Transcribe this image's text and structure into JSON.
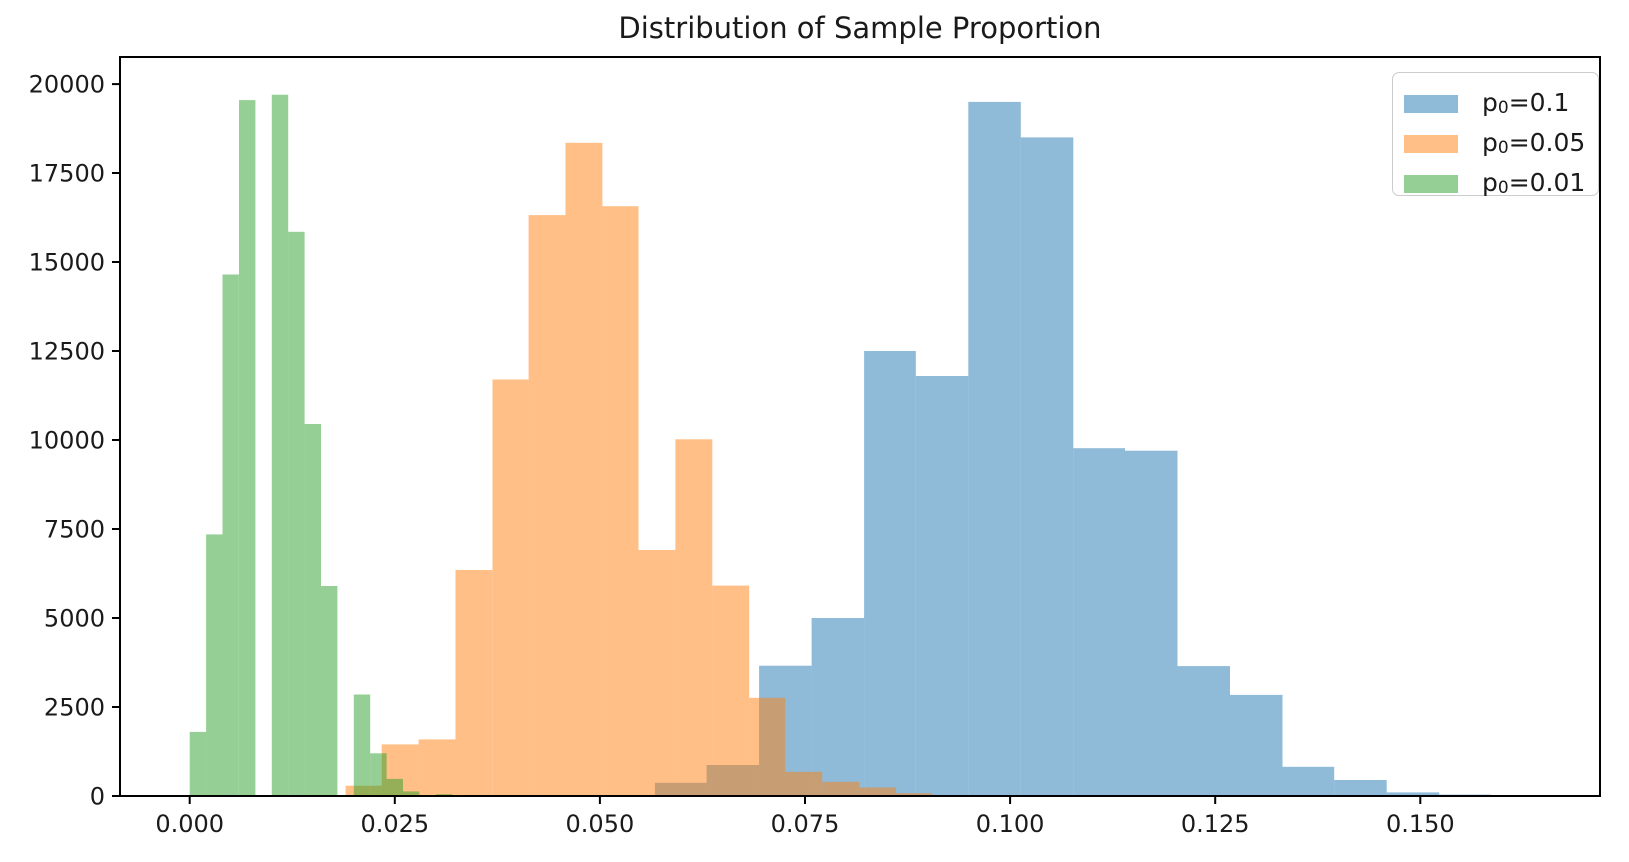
{
  "chart_data": {
    "type": "histogram",
    "title": "Distribution of Sample Proportion",
    "xlabel": "",
    "ylabel": "",
    "xlim": [
      -0.0085,
      0.1719
    ],
    "ylim": [
      0,
      20760
    ],
    "grid": false,
    "legend_position": "upper right",
    "x_tick_values": [
      0.0,
      0.025,
      0.05,
      0.075,
      0.1,
      0.125,
      0.15
    ],
    "x_tick_labels": [
      "0.000",
      "0.025",
      "0.050",
      "0.075",
      "0.100",
      "0.125",
      "0.150"
    ],
    "y_tick_values": [
      0,
      2500,
      5000,
      7500,
      10000,
      12500,
      15000,
      17500,
      20000
    ],
    "y_tick_labels": [
      "0",
      "2500",
      "5000",
      "7500",
      "10000",
      "12500",
      "15000",
      "17500",
      "20000"
    ],
    "axis_color": "#000000",
    "text_color": "#1a1a1a",
    "series": [
      {
        "name": "p0=0.1",
        "label_base": "p",
        "label_sub": "0",
        "label_rest": "=0.1",
        "color": "#1f77b4",
        "alpha": 0.5,
        "bars": [
          [
            0.0567,
            0.063,
            370
          ],
          [
            0.063,
            0.0694,
            870
          ],
          [
            0.0694,
            0.0758,
            3660
          ],
          [
            0.0758,
            0.0822,
            5000
          ],
          [
            0.0822,
            0.0885,
            12500
          ],
          [
            0.0885,
            0.0949,
            11800
          ],
          [
            0.0949,
            0.1013,
            19500
          ],
          [
            0.1013,
            0.1077,
            18500
          ],
          [
            0.1077,
            0.114,
            9770
          ],
          [
            0.114,
            0.1204,
            9700
          ],
          [
            0.1204,
            0.1268,
            3650
          ],
          [
            0.1268,
            0.1332,
            2840
          ],
          [
            0.1332,
            0.1395,
            820
          ],
          [
            0.1395,
            0.1459,
            450
          ],
          [
            0.1459,
            0.1523,
            100
          ],
          [
            0.1523,
            0.1586,
            40
          ]
        ]
      },
      {
        "name": "p0=0.05",
        "label_base": "p",
        "label_sub": "0",
        "label_rest": "=0.05",
        "color": "#ff7f0e",
        "alpha": 0.5,
        "bars": [
          [
            0.019,
            0.0234,
            290
          ],
          [
            0.0234,
            0.0279,
            1450
          ],
          [
            0.0279,
            0.0324,
            1590
          ],
          [
            0.0324,
            0.0369,
            6350
          ],
          [
            0.0369,
            0.0413,
            11700
          ],
          [
            0.0413,
            0.0458,
            16320
          ],
          [
            0.0458,
            0.0503,
            18350
          ],
          [
            0.0503,
            0.0547,
            16570
          ],
          [
            0.0547,
            0.0592,
            6910
          ],
          [
            0.0592,
            0.0637,
            10020
          ],
          [
            0.0637,
            0.0682,
            5910
          ],
          [
            0.0682,
            0.0726,
            2760
          ],
          [
            0.0726,
            0.0771,
            680
          ],
          [
            0.0771,
            0.0816,
            400
          ],
          [
            0.0816,
            0.0861,
            240
          ],
          [
            0.0861,
            0.0905,
            80
          ]
        ]
      },
      {
        "name": "p0=0.01",
        "label_base": "p",
        "label_sub": "0",
        "label_rest": "=0.01",
        "color": "#2ca02c",
        "alpha": 0.5,
        "bars": [
          [
            0.0,
            0.002,
            1800
          ],
          [
            0.002,
            0.004,
            7350
          ],
          [
            0.004,
            0.006,
            14650
          ],
          [
            0.006,
            0.008,
            19550
          ],
          [
            0.008,
            0.01,
            0
          ],
          [
            0.01,
            0.012,
            19700
          ],
          [
            0.012,
            0.014,
            15850
          ],
          [
            0.014,
            0.016,
            10450
          ],
          [
            0.016,
            0.018,
            5900
          ],
          [
            0.018,
            0.02,
            0
          ],
          [
            0.02,
            0.022,
            2850
          ],
          [
            0.022,
            0.024,
            1200
          ],
          [
            0.024,
            0.026,
            480
          ],
          [
            0.026,
            0.028,
            130
          ],
          [
            0.028,
            0.03,
            0
          ],
          [
            0.03,
            0.032,
            50
          ]
        ]
      }
    ]
  }
}
